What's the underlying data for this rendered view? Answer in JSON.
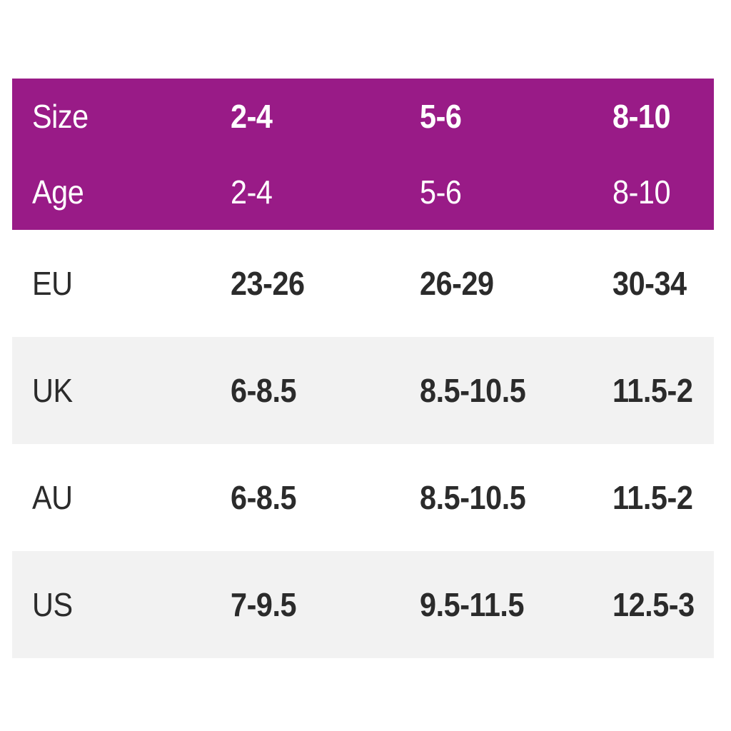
{
  "colors": {
    "page_bg": "#FFFFFF",
    "header_bg": "#991B87",
    "header_text": "#FFFFFF",
    "stripe_bg": "#F2F2F2",
    "body_text": "#2B2B2B"
  },
  "size_chart": {
    "header_rows": [
      {
        "label": "Size",
        "values": [
          "2-4",
          "5-6",
          "8-10"
        ]
      },
      {
        "label": "Age",
        "values": [
          "2-4",
          "5-6",
          "8-10"
        ]
      }
    ],
    "body_rows": [
      {
        "label": "EU",
        "values": [
          "23-26",
          "26-29",
          "30-34"
        ]
      },
      {
        "label": "UK",
        "values": [
          "6-8.5",
          "8.5-10.5",
          "11.5-2"
        ]
      },
      {
        "label": "AU",
        "values": [
          "6-8.5",
          "8.5-10.5",
          "11.5-2"
        ]
      },
      {
        "label": "US",
        "values": [
          "7-9.5",
          "9.5-11.5",
          "12.5-3"
        ]
      }
    ]
  },
  "chart_data": {
    "type": "table",
    "columns": [
      "Size",
      "2-4",
      "5-6",
      "8-10"
    ],
    "rows": [
      [
        "Age",
        "2-4",
        "5-6",
        "8-10"
      ],
      [
        "EU",
        "23-26",
        "26-29",
        "30-34"
      ],
      [
        "UK",
        "6-8.5",
        "8.5-10.5",
        "11.5-2"
      ],
      [
        "AU",
        "6-8.5",
        "8.5-10.5",
        "11.5-2"
      ],
      [
        "US",
        "7-9.5",
        "9.5-11.5",
        "12.5-3"
      ]
    ]
  }
}
